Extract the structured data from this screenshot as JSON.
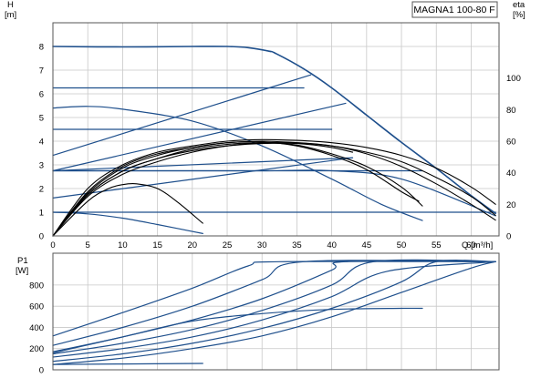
{
  "chart_data": [
    {
      "type": "line",
      "title": "MAGNA1 100-80 F",
      "xlabel": "Q [m³/h]",
      "ylabel": [
        "H",
        "[m]"
      ],
      "y2label": [
        "eta",
        "[%]"
      ],
      "xlim": [
        0,
        64
      ],
      "ylim": [
        0,
        9
      ],
      "y2lim": [
        0,
        135
      ],
      "xticks": [
        0,
        5,
        10,
        15,
        20,
        25,
        30,
        35,
        40,
        45,
        50,
        55,
        60
      ],
      "yticks": [
        0,
        1,
        2,
        3,
        4,
        5,
        6,
        7,
        8
      ],
      "y2ticks": [
        0,
        20,
        40,
        60,
        80,
        100
      ],
      "grid": true,
      "axis_colors": {
        "curve": "#1e4f8c",
        "efficiency": "#000000",
        "grid": "#c8c8c8",
        "frame": "#555555"
      },
      "series": [
        {
          "role": "hq-max",
          "x": [
            0,
            10,
            20,
            25,
            28,
            31,
            32,
            36,
            40,
            45,
            50,
            55,
            60,
            63.5
          ],
          "y": [
            8,
            7.98,
            8,
            8,
            7.95,
            7.8,
            7.7,
            7.05,
            6.25,
            5.1,
            3.95,
            2.85,
            1.7,
            0.95
          ]
        },
        {
          "role": "hq-proportional",
          "x": [
            0,
            10,
            20,
            30,
            36
          ],
          "y": [
            6.25,
            6.25,
            6.25,
            6.25,
            6.25
          ]
        },
        {
          "role": "hq-proportional",
          "x": [
            0,
            20,
            40
          ],
          "y": [
            4.5,
            4.5,
            4.5
          ]
        },
        {
          "role": "hq-proportional",
          "x": [
            0,
            20,
            40,
            53
          ],
          "y": [
            2.75,
            2.75,
            2.75,
            2.75
          ]
        },
        {
          "role": "hq-proportional",
          "x": [
            0,
            20,
            40,
            63.5
          ],
          "y": [
            1.0,
            1.0,
            1.0,
            1.0
          ]
        },
        {
          "role": "hq-setpoint-line",
          "x": [
            0,
            37
          ],
          "y": [
            3.4,
            6.8
          ]
        },
        {
          "role": "hq-setpoint-line",
          "x": [
            0,
            42
          ],
          "y": [
            2.75,
            5.6
          ]
        },
        {
          "role": "hq-setpoint-line",
          "x": [
            0,
            43
          ],
          "y": [
            1.6,
            3.3
          ]
        },
        {
          "role": "hq-setpoint-line",
          "x": [
            0,
            43
          ],
          "y": [
            2.75,
            3.3
          ]
        },
        {
          "role": "hq-speed-curve",
          "x": [
            0,
            5,
            10,
            20,
            30,
            40,
            47,
            53
          ],
          "y": [
            5.4,
            5.47,
            5.35,
            4.85,
            3.8,
            2.4,
            1.35,
            0.65
          ]
        },
        {
          "role": "hq-speed-curve",
          "x": [
            0,
            5,
            10,
            15,
            21.5
          ],
          "y": [
            1.0,
            0.93,
            0.75,
            0.48,
            0.1
          ]
        },
        {
          "role": "hq-speed-curve",
          "x": [
            0,
            10,
            20,
            30,
            40,
            50,
            63.5
          ],
          "y": [
            2.75,
            2.75,
            2.75,
            2.75,
            2.75,
            2.4,
            0.85
          ]
        },
        {
          "role": "efficiency",
          "x": [
            0,
            5,
            10,
            15,
            20,
            25,
            30,
            35,
            40,
            45,
            50,
            55,
            60,
            63.5
          ],
          "y": [
            0,
            25,
            39,
            47,
            53,
            57,
            59,
            59,
            57,
            52,
            44,
            33,
            20,
            10
          ]
        },
        {
          "role": "efficiency",
          "x": [
            0,
            5,
            10,
            15,
            20,
            25,
            30,
            35,
            40,
            45,
            50,
            53
          ],
          "y": [
            0,
            26,
            41,
            49,
            55,
            58,
            59,
            57.5,
            52,
            44,
            31,
            19
          ]
        },
        {
          "role": "efficiency",
          "x": [
            0,
            5,
            10,
            15,
            20,
            25,
            30,
            35,
            40,
            45,
            50,
            52.5
          ],
          "y": [
            0,
            27,
            43,
            51,
            56,
            59,
            59.5,
            57,
            51,
            42,
            28,
            22
          ]
        },
        {
          "role": "efficiency",
          "x": [
            0,
            5,
            10,
            15,
            20,
            25,
            30,
            35,
            40,
            45,
            50,
            55,
            60,
            63.5
          ],
          "y": [
            0,
            28,
            44,
            52,
            56,
            59,
            60,
            59,
            57,
            53,
            47,
            37,
            25,
            13
          ]
        },
        {
          "role": "efficiency",
          "x": [
            0,
            5,
            10,
            15,
            20,
            25,
            30,
            35,
            40,
            45,
            50,
            55,
            60,
            63.5
          ],
          "y": [
            0,
            30,
            45,
            53,
            57,
            60,
            61,
            60.5,
            59,
            56,
            51,
            43,
            31,
            20
          ]
        },
        {
          "role": "efficiency",
          "x": [
            0,
            5,
            8,
            10,
            12,
            15,
            18,
            21.5
          ],
          "y": [
            0,
            22,
            30,
            32.5,
            33,
            30,
            21,
            8
          ]
        },
        {
          "role": "efficiency",
          "x": [
            0,
            5,
            10,
            15,
            20,
            25,
            30,
            35,
            40,
            43
          ],
          "y": [
            0,
            26,
            41,
            49,
            54,
            57,
            58.5,
            58.5,
            56,
            53
          ]
        }
      ]
    },
    {
      "type": "line",
      "xlabel": "",
      "ylabel": [
        "P1",
        "[W]"
      ],
      "xlim": [
        0,
        64
      ],
      "ylim": [
        0,
        1100
      ],
      "yticks": [
        0,
        200,
        400,
        600,
        800
      ],
      "grid": true,
      "axis_colors": {
        "curve": "#1e4f8c",
        "grid": "#c8c8c8",
        "frame": "#555555"
      },
      "series": [
        {
          "role": "p1-curve",
          "x": [
            0,
            10,
            20,
            28,
            32.5,
            63.5
          ],
          "y": [
            320,
            540,
            770,
            980,
            1020,
            1020
          ]
        },
        {
          "role": "p1-curve",
          "x": [
            0,
            10,
            20,
            30,
            36,
            63.5
          ],
          "y": [
            230,
            400,
            600,
            850,
            1020,
            1020
          ]
        },
        {
          "role": "p1-curve",
          "x": [
            0,
            10,
            20,
            30,
            40,
            42,
            63.5
          ],
          "y": [
            170,
            310,
            470,
            670,
            940,
            1020,
            1020
          ]
        },
        {
          "role": "p1-curve",
          "x": [
            0,
            10,
            20,
            30,
            40,
            46,
            63.5
          ],
          "y": [
            150,
            250,
            380,
            560,
            800,
            1020,
            1020
          ]
        },
        {
          "role": "p1-curve",
          "x": [
            0,
            10,
            20,
            30,
            40,
            48,
            63.5
          ],
          "y": [
            120,
            200,
            310,
            470,
            690,
            930,
            1020
          ]
        },
        {
          "role": "p1-curve",
          "x": [
            0,
            10,
            20,
            30,
            40,
            50,
            55,
            63.5
          ],
          "y": [
            80,
            150,
            250,
            390,
            580,
            830,
            1020,
            1020
          ]
        },
        {
          "role": "p1-curve",
          "x": [
            0,
            10,
            20,
            30,
            40,
            50,
            60,
            63.5
          ],
          "y": [
            50,
            110,
            200,
            320,
            500,
            730,
            960,
            1020
          ]
        },
        {
          "role": "p1-curve",
          "x": [
            0,
            10,
            20,
            30,
            40,
            50,
            53
          ],
          "y": [
            160,
            310,
            460,
            530,
            570,
            580,
            580
          ]
        },
        {
          "role": "p1-curve",
          "x": [
            0,
            10,
            21.5
          ],
          "y": [
            50,
            55,
            60
          ]
        }
      ]
    }
  ]
}
